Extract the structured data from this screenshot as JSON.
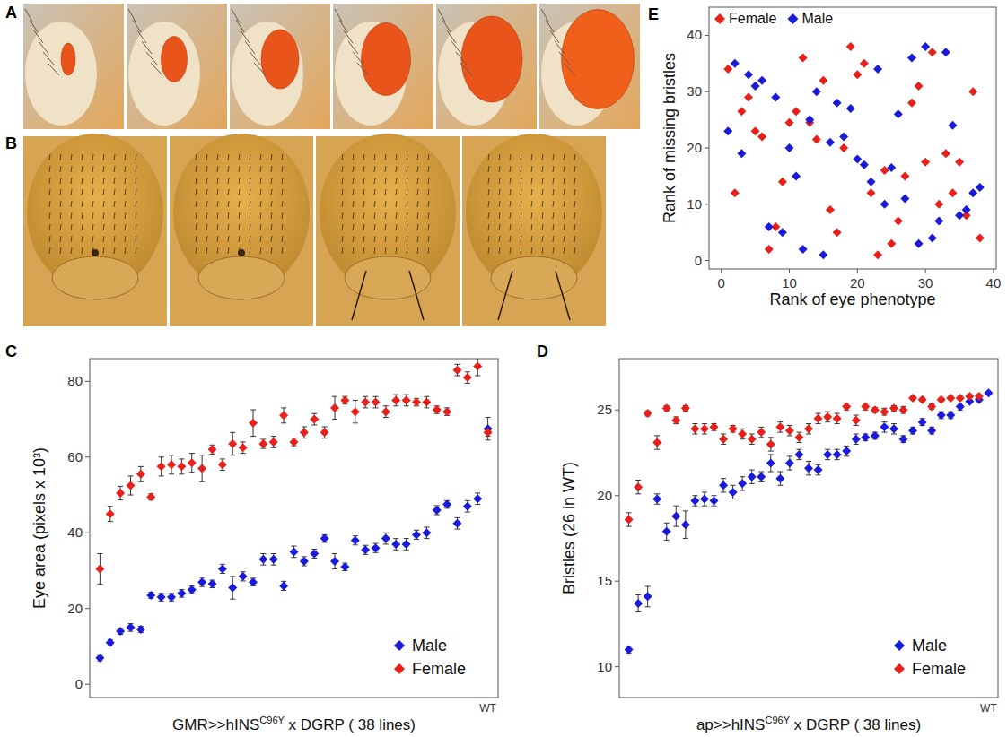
{
  "image_panels": [
    {
      "panel": "A"
    },
    {
      "panel": "B"
    }
  ],
  "chart_data": [
    {
      "type": "scatter",
      "panel": "C",
      "marker": "diamond",
      "ylabel": "Eye area (pixels x 10³)",
      "xlabel": [
        {
          "text": "GMR>>hINS"
        },
        {
          "text": "C96Y",
          "sup": true
        },
        {
          "text": " x DGRP ( 38 lines)"
        }
      ],
      "categories": [
        null,
        null,
        null,
        null,
        null,
        null,
        null,
        null,
        null,
        null,
        null,
        null,
        null,
        null,
        null,
        null,
        null,
        null,
        null,
        null,
        null,
        null,
        null,
        null,
        null,
        null,
        null,
        null,
        null,
        null,
        null,
        null,
        null,
        null,
        null,
        null,
        null,
        null,
        "WT"
      ],
      "ylim": [
        -3.5,
        86
      ],
      "yticks": [
        0,
        20,
        40,
        60,
        80
      ],
      "grid": false,
      "legend": "bottom-right",
      "series": [
        {
          "name": "Male",
          "color": "#1a1adb",
          "values": [
            7,
            11,
            14,
            15,
            14.5,
            23.5,
            23,
            23,
            24,
            25,
            27,
            26.5,
            30.5,
            25.5,
            28.5,
            27,
            33,
            33,
            26,
            35,
            32.5,
            34.5,
            38.5,
            32.5,
            31,
            38,
            35.5,
            36,
            38.5,
            37,
            37,
            39.5,
            40,
            46,
            47.5,
            42.5,
            47,
            49,
            67.5
          ],
          "errors": [
            0.8,
            0.8,
            0.8,
            1,
            0.8,
            0.8,
            1,
            1,
            1,
            1,
            1.2,
            1,
            1.2,
            3,
            1.2,
            1,
            1.5,
            1.5,
            1.2,
            1.5,
            1.2,
            1.2,
            1,
            2,
            1,
            1.2,
            1.2,
            1.2,
            1.5,
            1.5,
            1.5,
            1.2,
            1.5,
            1.2,
            1,
            1.5,
            1.5,
            1.5,
            3
          ]
        },
        {
          "name": "Female",
          "color": "#e8201a",
          "values": [
            30.5,
            45,
            50.5,
            52.5,
            55.5,
            49.5,
            57.5,
            58,
            57.5,
            58.5,
            57,
            62,
            58,
            63.5,
            62.5,
            69,
            63.5,
            64,
            71,
            64,
            66.5,
            70,
            66.5,
            73,
            75,
            72,
            74.5,
            74.5,
            72,
            75,
            75,
            74.5,
            74.5,
            72.5,
            72,
            83,
            81,
            84,
            66.5
          ],
          "errors": [
            4,
            2,
            1.8,
            2.5,
            2,
            0.8,
            2.5,
            2.5,
            2,
            2.5,
            3.5,
            1.2,
            1.5,
            3,
            1.5,
            3.5,
            1.2,
            1.5,
            2,
            1,
            1.5,
            1.5,
            1.5,
            3,
            1,
            3,
            1.5,
            1.5,
            1.5,
            1.5,
            1.5,
            1,
            1.5,
            1,
            1,
            1.5,
            1.5,
            2.5,
            1
          ]
        }
      ]
    },
    {
      "type": "scatter",
      "panel": "D",
      "marker": "diamond",
      "ylabel": "Bristles (26 in WT)",
      "xlabel": [
        {
          "text": "ap>>hINS"
        },
        {
          "text": "C96Y",
          "sup": true
        },
        {
          "text": " x DGRP ( 38 lines)"
        }
      ],
      "categories": [
        null,
        null,
        null,
        null,
        null,
        null,
        null,
        null,
        null,
        null,
        null,
        null,
        null,
        null,
        null,
        null,
        null,
        null,
        null,
        null,
        null,
        null,
        null,
        null,
        null,
        null,
        null,
        null,
        null,
        null,
        null,
        null,
        null,
        null,
        null,
        null,
        null,
        null,
        "WT"
      ],
      "ylim": [
        8.2,
        28
      ],
      "yticks": [
        10,
        15,
        20,
        25
      ],
      "grid": false,
      "legend": "bottom-right",
      "series": [
        {
          "name": "Male",
          "color": "#1a1adb",
          "values": [
            11,
            13.7,
            14.1,
            19.8,
            17.9,
            18.8,
            18.3,
            19.7,
            19.8,
            19.7,
            20.6,
            20.2,
            20.7,
            21.1,
            21.1,
            21.9,
            21,
            21.9,
            22.4,
            21.6,
            21.5,
            22.4,
            22.4,
            22.6,
            23.3,
            23.4,
            23.5,
            24,
            23.9,
            23.3,
            23.8,
            24.3,
            23.8,
            24.7,
            24.7,
            25.2,
            25.5,
            25.6,
            26
          ],
          "errors": [
            0.2,
            0.5,
            0.6,
            0.3,
            0.5,
            0.6,
            0.8,
            0.3,
            0.4,
            0.3,
            0.4,
            0.4,
            0.4,
            0.4,
            0.3,
            0.5,
            0.4,
            0.4,
            0.3,
            0.4,
            0.3,
            0.3,
            0.3,
            0.3,
            0.3,
            0.2,
            0.2,
            0.3,
            0.3,
            0.2,
            0.2,
            0.2,
            0.2,
            0.2,
            0.2,
            0.2,
            0.1,
            0.1,
            null
          ]
        },
        {
          "name": "Female",
          "color": "#e8201a",
          "values": [
            18.6,
            20.5,
            24.8,
            23.1,
            25.1,
            24.4,
            25.1,
            23.9,
            23.9,
            24,
            23.3,
            23.9,
            23.6,
            23.3,
            23.7,
            23,
            24,
            23.8,
            23.4,
            23.9,
            24.5,
            24.6,
            24.5,
            25.2,
            24.4,
            25.2,
            25,
            24.9,
            25.1,
            25,
            25.7,
            25.6,
            25.2,
            25.6,
            25.7,
            25.7,
            25.8,
            25.8,
            null
          ],
          "errors": [
            0.4,
            0.4,
            0.15,
            0.4,
            0.15,
            0.2,
            0.15,
            0.3,
            0.3,
            0.2,
            0.3,
            0.2,
            0.3,
            0.3,
            0.3,
            0.4,
            0.3,
            0.3,
            0.3,
            0.3,
            0.3,
            0.3,
            0.3,
            0.2,
            0.3,
            0.2,
            0.15,
            0.2,
            0.15,
            0.2,
            0.1,
            0.1,
            0.15,
            0.1,
            0.1,
            0.1,
            0.1,
            0.1,
            null
          ]
        }
      ]
    },
    {
      "type": "scatter",
      "panel": "E",
      "marker": "diamond",
      "xlabel": "Rank of eye phenotype",
      "ylabel": "Rank of missing bristles",
      "xlim": [
        -1.8,
        40.4
      ],
      "xticks": [
        0,
        10,
        20,
        30,
        40
      ],
      "ylim": [
        -1.5,
        45
      ],
      "yticks": [
        0,
        10,
        20,
        30,
        40
      ],
      "grid": false,
      "legend": "top-left",
      "series": [
        {
          "name": "Female",
          "color": "#e8201a",
          "x": [
            1,
            2,
            3,
            4,
            5,
            6,
            7,
            8,
            9,
            10,
            11,
            12,
            13,
            14,
            15,
            16,
            17,
            18,
            19,
            20,
            21,
            22,
            23,
            24,
            25,
            26,
            27,
            28,
            29,
            30,
            31,
            32,
            33,
            34,
            35,
            36,
            37,
            38
          ],
          "values": [
            34,
            12,
            26.5,
            29,
            23,
            22,
            2,
            6,
            14,
            24.5,
            26.5,
            36,
            24.5,
            21.5,
            32,
            9,
            5,
            20,
            38,
            33,
            35,
            12,
            1,
            16,
            3,
            7,
            15,
            28,
            31,
            17.5,
            37,
            10,
            19,
            12,
            17.5,
            8,
            30,
            4
          ]
        },
        {
          "name": "Male",
          "color": "#1a1adb",
          "x": [
            1,
            2,
            3,
            4,
            5,
            6,
            7,
            8,
            9,
            10,
            11,
            12,
            13,
            14,
            15,
            16,
            17,
            18,
            19,
            20,
            21,
            22,
            23,
            24,
            25,
            26,
            27,
            28,
            29,
            30,
            31,
            32,
            33,
            34,
            35,
            36,
            37,
            38
          ],
          "values": [
            23,
            35,
            19,
            33,
            31,
            32,
            6,
            29,
            5,
            20,
            15,
            2,
            25,
            30,
            1,
            21,
            28,
            22,
            27,
            18,
            17,
            14,
            34,
            10,
            16.5,
            26,
            11,
            36,
            3,
            38,
            4,
            7,
            37,
            24,
            8,
            9,
            12,
            13
          ]
        }
      ]
    }
  ]
}
